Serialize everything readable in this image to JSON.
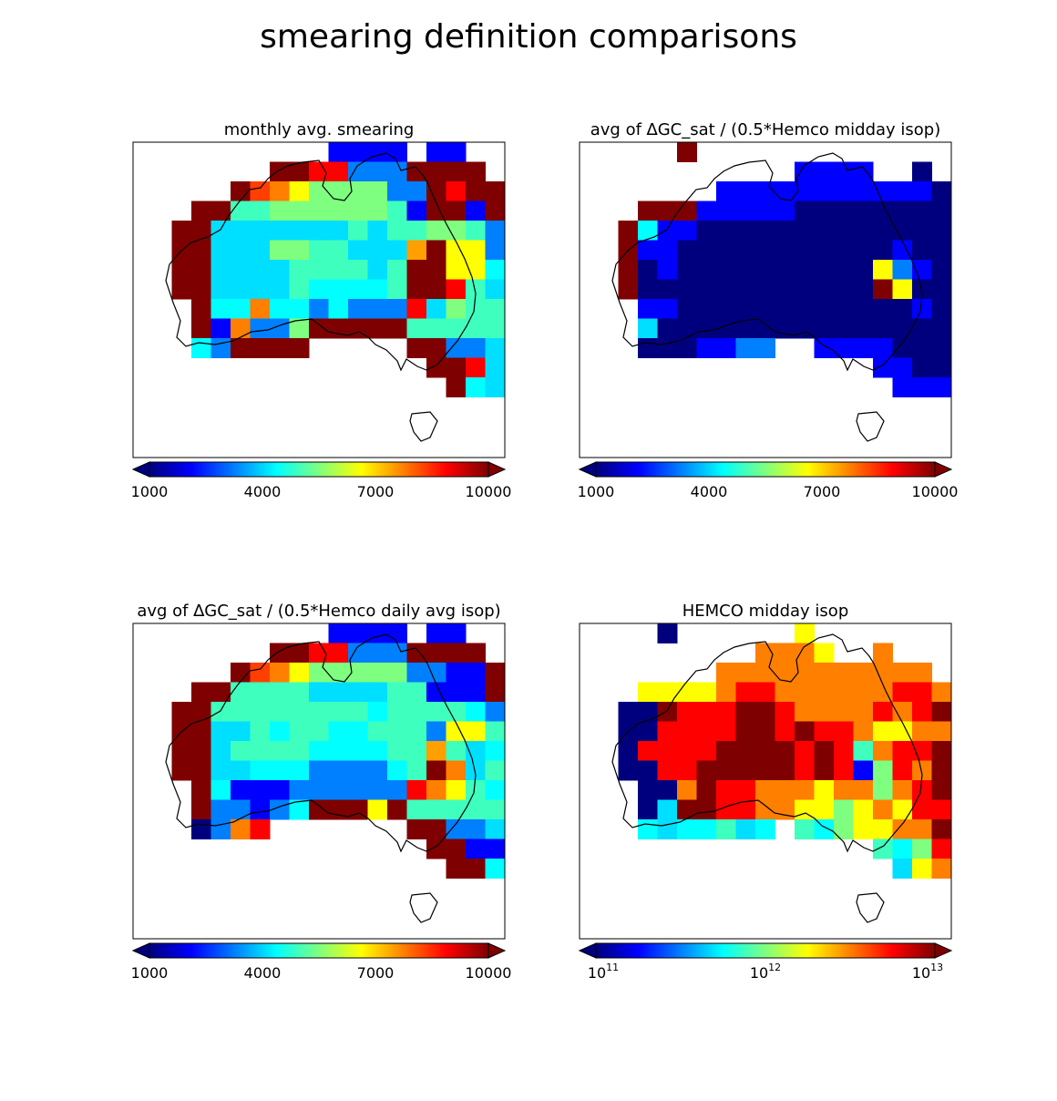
{
  "figure": {
    "title": "smearing definition comparisons"
  },
  "colors": {
    "jet": [
      "#00007f",
      "#0000ff",
      "#007fff",
      "#00ffff",
      "#7fff7f",
      "#ffff00",
      "#ff7f00",
      "#ff0000",
      "#7f0000"
    ],
    "frame": "#000000",
    "coast": "#000000"
  },
  "chart_data": [
    {
      "type": "heatmap",
      "title": "monthly avg. smearing",
      "scale": "linear",
      "clim": [
        1000,
        10000
      ],
      "colorbar_ticks": [
        "1000",
        "4000",
        "7000",
        "10000"
      ],
      "colorbar_extend": "both",
      "grid": [
        ".........BBBB.BB......",
        "......KKJJCCCKKKK.....",
        "....KMIHGGGGCCKJKK....",
        "..KKEEGGGGGGEBKKBKK...",
        ".KKFFFFFFFEFEEGGECEK..",
        ".KKFFFGGEEFFFLKHHCCDF.",
        ".KKFFFFEEEEFEKKHHDDEE.",
        ".KKFFFFEDDDDEKKJEFDEF.",
        "..KDDIDDCDCCCJFGEEEEG.",
        "..KBICCGKKKKKEEEEEEEG.",
        "..DCKKKK.....KKCCFLC..",
        "..............KKJFCCK.",
        "...............KDFDCK.",
        ".......................",
        "...................KKKK.",
        "...................KACK.",
        "...................KKKK.",
        "...................KKKK."
      ]
    },
    {
      "type": "heatmap",
      "title": "avg of ∆GC_sat / (0.5*Hemco midday isop)",
      "scale": "linear",
      "clim": [
        1000,
        10000
      ],
      "colorbar_ticks": [
        "1000",
        "4000",
        "7000",
        "10000"
      ],
      "colorbar_extend": "both",
      "grid": [
        "....K.................",
        "..........BBBB..A.....",
        "......BBBBBBBBBBBA....",
        "..KKKBBBBBAAAAAAAAA...",
        ".KDBBAAAAAAAAAAAAAAA..",
        ".KBBAAAAAAAAAAABAAAAA.",
        ".KABAAAAAAAAAAHCBAAAAA",
        ".KAAAAAAAAAAAAKHAAAAAA",
        "..BBAAAAAAAAAAAABAAAAA",
        "..FAAAAAAAAAAAAAAAAAA.",
        "..AAABBCC..BBBBAAACA..",
        "..............BBAAAA..",
        "...............BBBBB..",
        "......................",
        "...................AA.",
        "...................AA.",
        "......................",
        "......................"
      ]
    },
    {
      "type": "heatmap",
      "title": "avg of ∆GC_sat / (0.5*Hemco daily avg isop)",
      "scale": "linear",
      "clim": [
        1000,
        10000
      ],
      "colorbar_ticks": [
        "1000",
        "4000",
        "7000",
        "10000"
      ],
      "colorbar_extend": "both",
      "grid": [
        ".........BBBB.BB......",
        "......KKJJCCCKKKK.....",
        "....KMIHGGGGGCCBBKK...",
        "..KKEEEEFFFFEEBBBKK...",
        ".KKEEEEEEEEDEEEEDCBK..",
        ".KKFFEDEEDDEEECHHEDCC.",
        ".KKFEEEEDDDDEELEFDBCC.",
        ".KKFFDDDCCCCDEKIFEDCF.",
        "..KDBBBCCCCCCJIHEDDDE.",
        "..KCCBCDKKKHKEEEEEEEF.",
        "..ACIJ.......KKCCFIC..",
        "..............KKBBBCK.",
        "...............KKDCBK.",
        "...................KKKK.",
        "...................KACK.",
        "...................HGAK.",
        "...................KKKK.",
        "...................KKKK."
      ]
    },
    {
      "type": "heatmap",
      "title": "HEMCO midday isop",
      "scale": "log",
      "clim": [
        100000000000.0,
        10000000000000.0
      ],
      "colorbar_ticks": [
        "10^11",
        "10^12",
        "10^13"
      ],
      "colorbar_extend": "both",
      "grid": [
        "...A......H...........",
        "........IIIH..I.......",
        "......IIIIIIIIIII.....",
        "..HHHHIJJIIIIIIJJIH...",
        ".AAKJJJKKJIIIIJIJKII..",
        ".AAJJJJKKJKJJIHHIIJJI.",
        ".AJJJJKKKKJKJEIJJKKKKJ",
        ".AAJJKKKKKJKJBGJIKKKKJ",
        "..AAIKJJIIIHIIGIJKKJJ.",
        "..AFKKJJIIHHGHIHJJKKK.",
        "..DFDDEFD.EDGHHIIKHI..",
        "..............EDGJIJ..",
        "...............FHIJ...",
        "......................",
        "...................HH.",
        "...................HH.",
        "......................",
        "......................"
      ]
    }
  ]
}
